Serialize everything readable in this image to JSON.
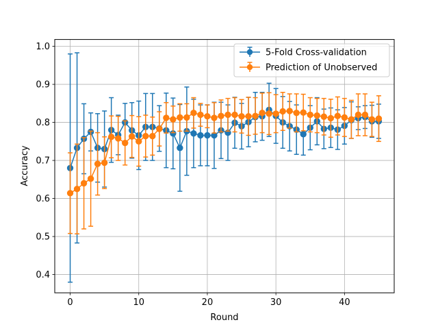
{
  "chart_data": {
    "type": "line",
    "xlabel": "Round",
    "ylabel": "Accuracy",
    "xlim": [
      -2.25,
      47.25
    ],
    "ylim": [
      0.352,
      1.018
    ],
    "xticks": [
      0,
      10,
      20,
      30,
      40
    ],
    "xtick_labels": [
      "0",
      "10",
      "20",
      "30",
      "40"
    ],
    "yticks": [
      0.4,
      0.5,
      0.6,
      0.7,
      0.8,
      0.9,
      1.0
    ],
    "ytick_labels": [
      "0.4",
      "0.5",
      "0.6",
      "0.7",
      "0.8",
      "0.9",
      "1.0"
    ],
    "grid": true,
    "legend_position": "top-right",
    "x": [
      0,
      1,
      2,
      3,
      4,
      5,
      6,
      7,
      8,
      9,
      10,
      11,
      12,
      13,
      14,
      15,
      16,
      17,
      18,
      19,
      20,
      21,
      22,
      23,
      24,
      25,
      26,
      27,
      28,
      29,
      30,
      31,
      32,
      33,
      34,
      35,
      36,
      37,
      38,
      39,
      40,
      41,
      42,
      43,
      44,
      45
    ],
    "series": [
      {
        "name": "5-Fold Cross-validation",
        "color": "#1f77b4",
        "values": [
          0.68,
          0.733,
          0.757,
          0.775,
          0.733,
          0.73,
          0.78,
          0.767,
          0.8,
          0.779,
          0.766,
          0.788,
          0.788,
          0.784,
          0.779,
          0.771,
          0.733,
          0.777,
          0.771,
          0.766,
          0.766,
          0.766,
          0.779,
          0.773,
          0.799,
          0.79,
          0.801,
          0.814,
          0.816,
          0.833,
          0.817,
          0.8,
          0.79,
          0.781,
          0.769,
          0.786,
          0.803,
          0.783,
          0.786,
          0.781,
          0.791,
          0.806,
          0.811,
          0.814,
          0.803,
          0.803
        ],
        "errors": [
          0.3,
          0.25,
          0.092,
          0.05,
          0.09,
          0.1,
          0.085,
          0.052,
          0.05,
          0.073,
          0.09,
          0.088,
          0.088,
          0.06,
          0.098,
          0.093,
          0.114,
          0.116,
          0.09,
          0.08,
          0.08,
          0.087,
          0.074,
          0.073,
          0.067,
          0.06,
          0.065,
          0.065,
          0.063,
          0.07,
          0.072,
          0.068,
          0.065,
          0.065,
          0.055,
          0.058,
          0.062,
          0.052,
          0.052,
          0.052,
          0.048,
          0.048,
          0.03,
          0.03,
          0.042,
          0.045
        ]
      },
      {
        "name": "Prediction of Unobserved",
        "color": "#ff7f0e",
        "values": [
          0.614,
          0.625,
          0.64,
          0.652,
          0.691,
          0.694,
          0.762,
          0.758,
          0.746,
          0.763,
          0.75,
          0.764,
          0.764,
          0.783,
          0.812,
          0.808,
          0.813,
          0.813,
          0.825,
          0.82,
          0.816,
          0.812,
          0.817,
          0.82,
          0.82,
          0.816,
          0.816,
          0.817,
          0.825,
          0.823,
          0.823,
          0.829,
          0.83,
          0.825,
          0.826,
          0.82,
          0.818,
          0.815,
          0.811,
          0.817,
          0.813,
          0.808,
          0.82,
          0.82,
          0.808,
          0.81
        ],
        "errors": [
          0.106,
          0.118,
          0.12,
          0.125,
          0.082,
          0.068,
          0.055,
          0.058,
          0.058,
          0.055,
          0.065,
          0.055,
          0.05,
          0.045,
          0.04,
          0.035,
          0.036,
          0.036,
          0.04,
          0.03,
          0.03,
          0.04,
          0.042,
          0.043,
          0.045,
          0.044,
          0.05,
          0.048,
          0.052,
          0.055,
          0.05,
          0.05,
          0.045,
          0.05,
          0.048,
          0.045,
          0.045,
          0.048,
          0.05,
          0.05,
          0.05,
          0.05,
          0.055,
          0.055,
          0.045,
          0.06
        ]
      }
    ]
  }
}
